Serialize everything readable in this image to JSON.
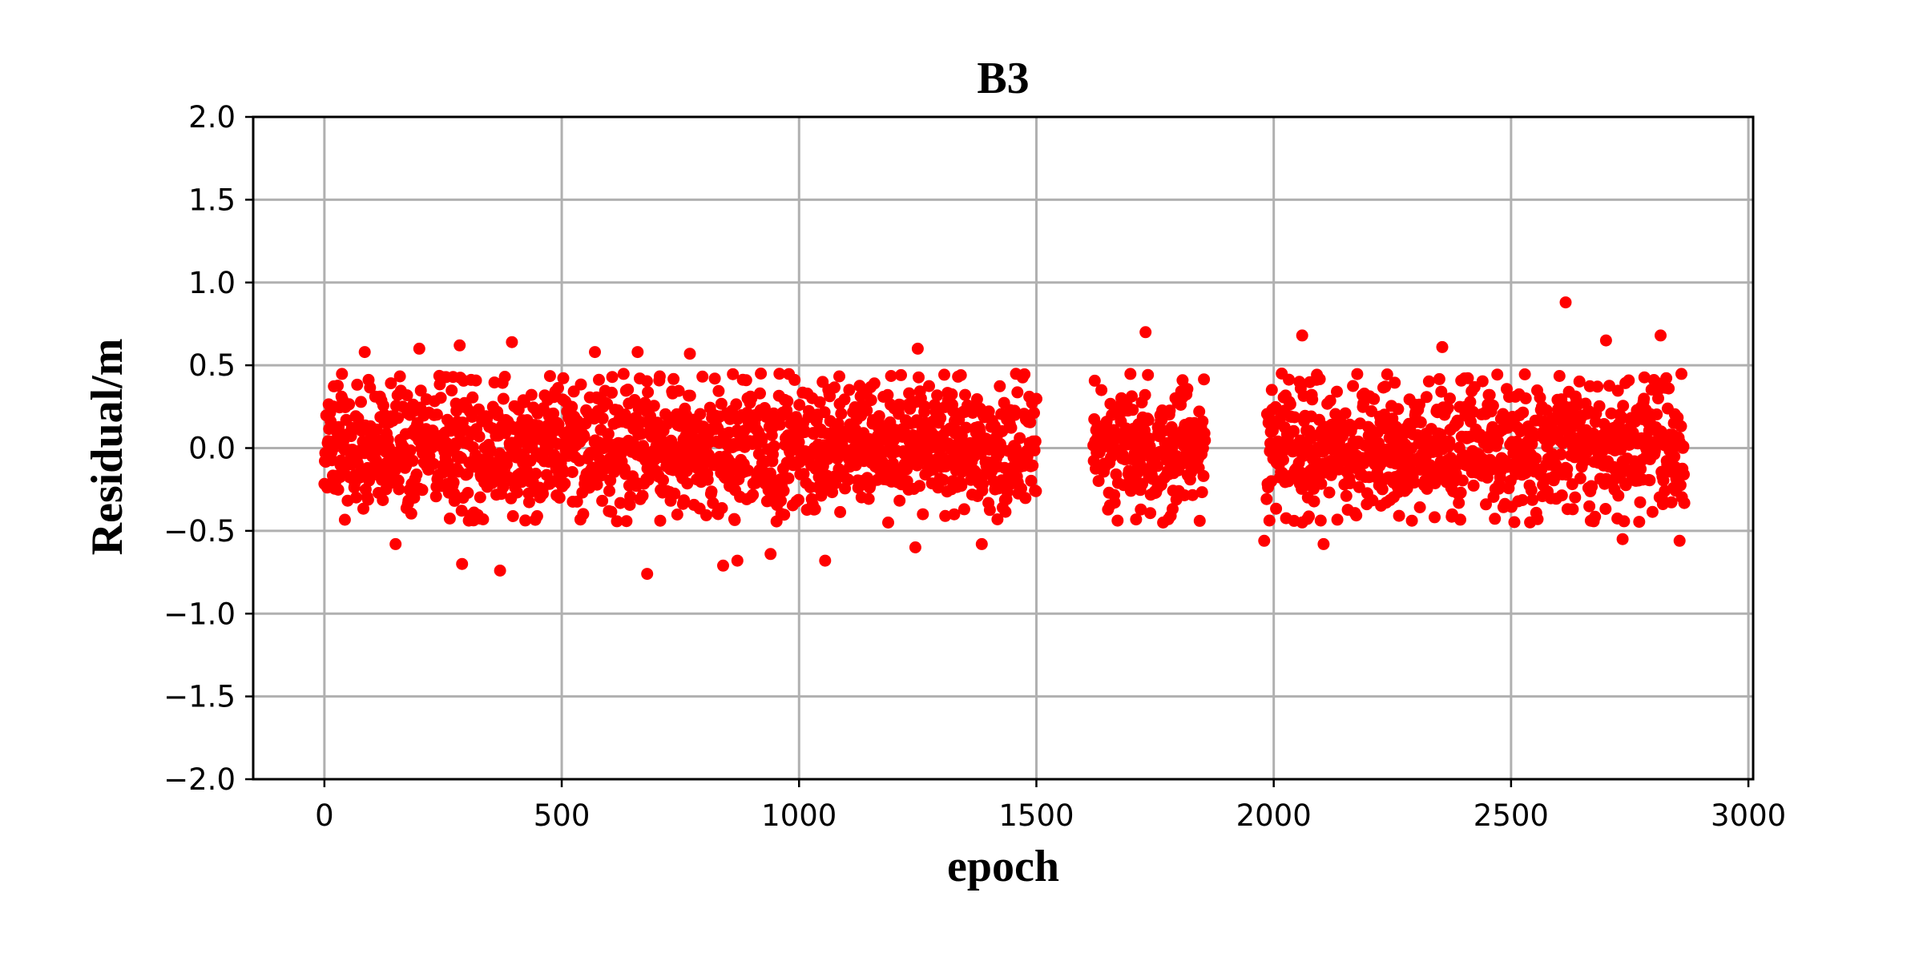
{
  "chart_data": {
    "type": "scatter",
    "title": "B3",
    "xlabel": "epoch",
    "ylabel": "Residual/m",
    "xlim": [
      -150,
      3010
    ],
    "ylim": [
      -2.0,
      2.0
    ],
    "xticks": [
      0,
      500,
      1000,
      1500,
      2000,
      2500,
      3000
    ],
    "xtick_labels": [
      "0",
      "500",
      "1000",
      "1500",
      "2000",
      "2500",
      "3000"
    ],
    "yticks": [
      2.0,
      1.5,
      1.0,
      0.5,
      0.0,
      -0.5,
      -1.0,
      -1.5,
      -2.0
    ],
    "ytick_labels": [
      "2.0",
      "1.5",
      "1.0",
      "0.5",
      "0.0",
      "−0.5",
      "−1.0",
      "−1.5",
      "−2.0"
    ],
    "grid": true,
    "marker_color": "#ff0000",
    "series": [
      {
        "segments": [
          {
            "x_start": 0,
            "x_end": 1500,
            "count": 1500
          },
          {
            "x_start": 1620,
            "x_end": 1855,
            "count": 236
          },
          {
            "x_start": 1985,
            "x_end": 2865,
            "count": 881
          }
        ],
        "typical_range": [
          -0.45,
          0.45
        ],
        "outliers": [
          {
            "x": 85,
            "y": 0.58
          },
          {
            "x": 200,
            "y": 0.6
          },
          {
            "x": 285,
            "y": 0.62
          },
          {
            "x": 395,
            "y": 0.64
          },
          {
            "x": 570,
            "y": 0.58
          },
          {
            "x": 660,
            "y": 0.58
          },
          {
            "x": 770,
            "y": 0.57
          },
          {
            "x": 1250,
            "y": 0.6
          },
          {
            "x": 1730,
            "y": 0.7
          },
          {
            "x": 2060,
            "y": 0.68
          },
          {
            "x": 2355,
            "y": 0.61
          },
          {
            "x": 2615,
            "y": 0.88
          },
          {
            "x": 2700,
            "y": 0.65
          },
          {
            "x": 2815,
            "y": 0.68
          },
          {
            "x": 150,
            "y": -0.58
          },
          {
            "x": 290,
            "y": -0.7
          },
          {
            "x": 370,
            "y": -0.74
          },
          {
            "x": 680,
            "y": -0.76
          },
          {
            "x": 840,
            "y": -0.71
          },
          {
            "x": 870,
            "y": -0.68
          },
          {
            "x": 940,
            "y": -0.64
          },
          {
            "x": 1055,
            "y": -0.68
          },
          {
            "x": 1245,
            "y": -0.6
          },
          {
            "x": 1385,
            "y": -0.58
          },
          {
            "x": 1980,
            "y": -0.56
          },
          {
            "x": 2105,
            "y": -0.58
          },
          {
            "x": 2735,
            "y": -0.55
          },
          {
            "x": 2855,
            "y": -0.56
          }
        ]
      }
    ]
  }
}
